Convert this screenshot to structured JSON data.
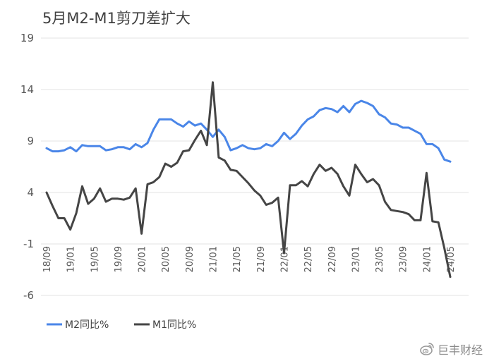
{
  "watermark": {
    "text": "巨丰财经",
    "logo_icon": "weibo-logo-icon"
  },
  "chart_data": {
    "type": "line",
    "title": "5月M2-M1剪刀差扩大",
    "xlabel": "",
    "ylabel": "",
    "ylim": [
      -6,
      19
    ],
    "yticks": [
      19,
      14,
      9,
      4,
      -1,
      -6
    ],
    "grid": "horizontal",
    "legend_position": "bottom-left",
    "x": [
      "18/09",
      "18/10",
      "18/11",
      "18/12",
      "19/01",
      "19/02",
      "19/03",
      "19/04",
      "19/05",
      "19/06",
      "19/07",
      "19/08",
      "19/09",
      "19/10",
      "19/11",
      "19/12",
      "20/01",
      "20/02",
      "20/03",
      "20/04",
      "20/05",
      "20/06",
      "20/07",
      "20/08",
      "20/09",
      "20/10",
      "20/11",
      "20/12",
      "21/01",
      "21/02",
      "21/03",
      "21/04",
      "21/05",
      "21/06",
      "21/07",
      "21/08",
      "21/09",
      "21/10",
      "21/11",
      "21/12",
      "22/01",
      "22/02",
      "22/03",
      "22/04",
      "22/05",
      "22/06",
      "22/07",
      "22/08",
      "22/09",
      "22/10",
      "22/11",
      "22/12",
      "23/01",
      "23/02",
      "23/03",
      "23/04",
      "23/05",
      "23/06",
      "23/07",
      "23/08",
      "23/09",
      "23/10",
      "23/11",
      "23/12",
      "24/01",
      "24/02",
      "24/03",
      "24/04",
      "24/05"
    ],
    "xtick_labels": [
      "18/09",
      "19/01",
      "19/05",
      "19/09",
      "20/01",
      "20/05",
      "20/09",
      "21/01",
      "21/05",
      "21/09",
      "22/01",
      "22/05",
      "22/09",
      "23/01",
      "23/05",
      "23/09",
      "24/01",
      "24/05"
    ],
    "series": [
      {
        "name": "M2同比%",
        "color": "#4a86e8",
        "values": [
          8.3,
          8.0,
          8.0,
          8.1,
          8.4,
          8.0,
          8.6,
          8.5,
          8.5,
          8.5,
          8.1,
          8.2,
          8.4,
          8.4,
          8.2,
          8.7,
          8.4,
          8.8,
          10.1,
          11.1,
          11.1,
          11.1,
          10.7,
          10.4,
          10.9,
          10.5,
          10.7,
          10.1,
          9.4,
          10.1,
          9.4,
          8.1,
          8.3,
          8.6,
          8.3,
          8.2,
          8.3,
          8.7,
          8.5,
          9.0,
          9.8,
          9.2,
          9.7,
          10.5,
          11.1,
          11.4,
          12.0,
          12.2,
          12.1,
          11.8,
          12.4,
          11.8,
          12.6,
          12.9,
          12.7,
          12.4,
          11.6,
          11.3,
          10.7,
          10.6,
          10.3,
          10.3,
          10.0,
          9.7,
          8.7,
          8.7,
          8.3,
          7.2,
          7.0
        ]
      },
      {
        "name": "M1同比%",
        "color": "#454545",
        "values": [
          4.0,
          2.7,
          1.5,
          1.5,
          0.4,
          2.0,
          4.6,
          2.9,
          3.4,
          4.4,
          3.1,
          3.4,
          3.4,
          3.3,
          3.5,
          4.4,
          0.0,
          4.8,
          5.0,
          5.5,
          6.8,
          6.5,
          6.9,
          8.0,
          8.1,
          9.1,
          10.0,
          8.6,
          14.7,
          7.4,
          7.1,
          6.2,
          6.1,
          5.5,
          4.9,
          4.2,
          3.7,
          2.8,
          3.0,
          3.5,
          -1.9,
          4.7,
          4.7,
          5.1,
          4.6,
          5.8,
          6.7,
          6.1,
          6.4,
          5.8,
          4.6,
          3.7,
          6.7,
          5.8,
          5.0,
          5.3,
          4.7,
          3.1,
          2.3,
          2.2,
          2.1,
          1.9,
          1.3,
          1.3,
          5.9,
          1.2,
          1.1,
          -1.4,
          -4.2
        ]
      }
    ]
  }
}
